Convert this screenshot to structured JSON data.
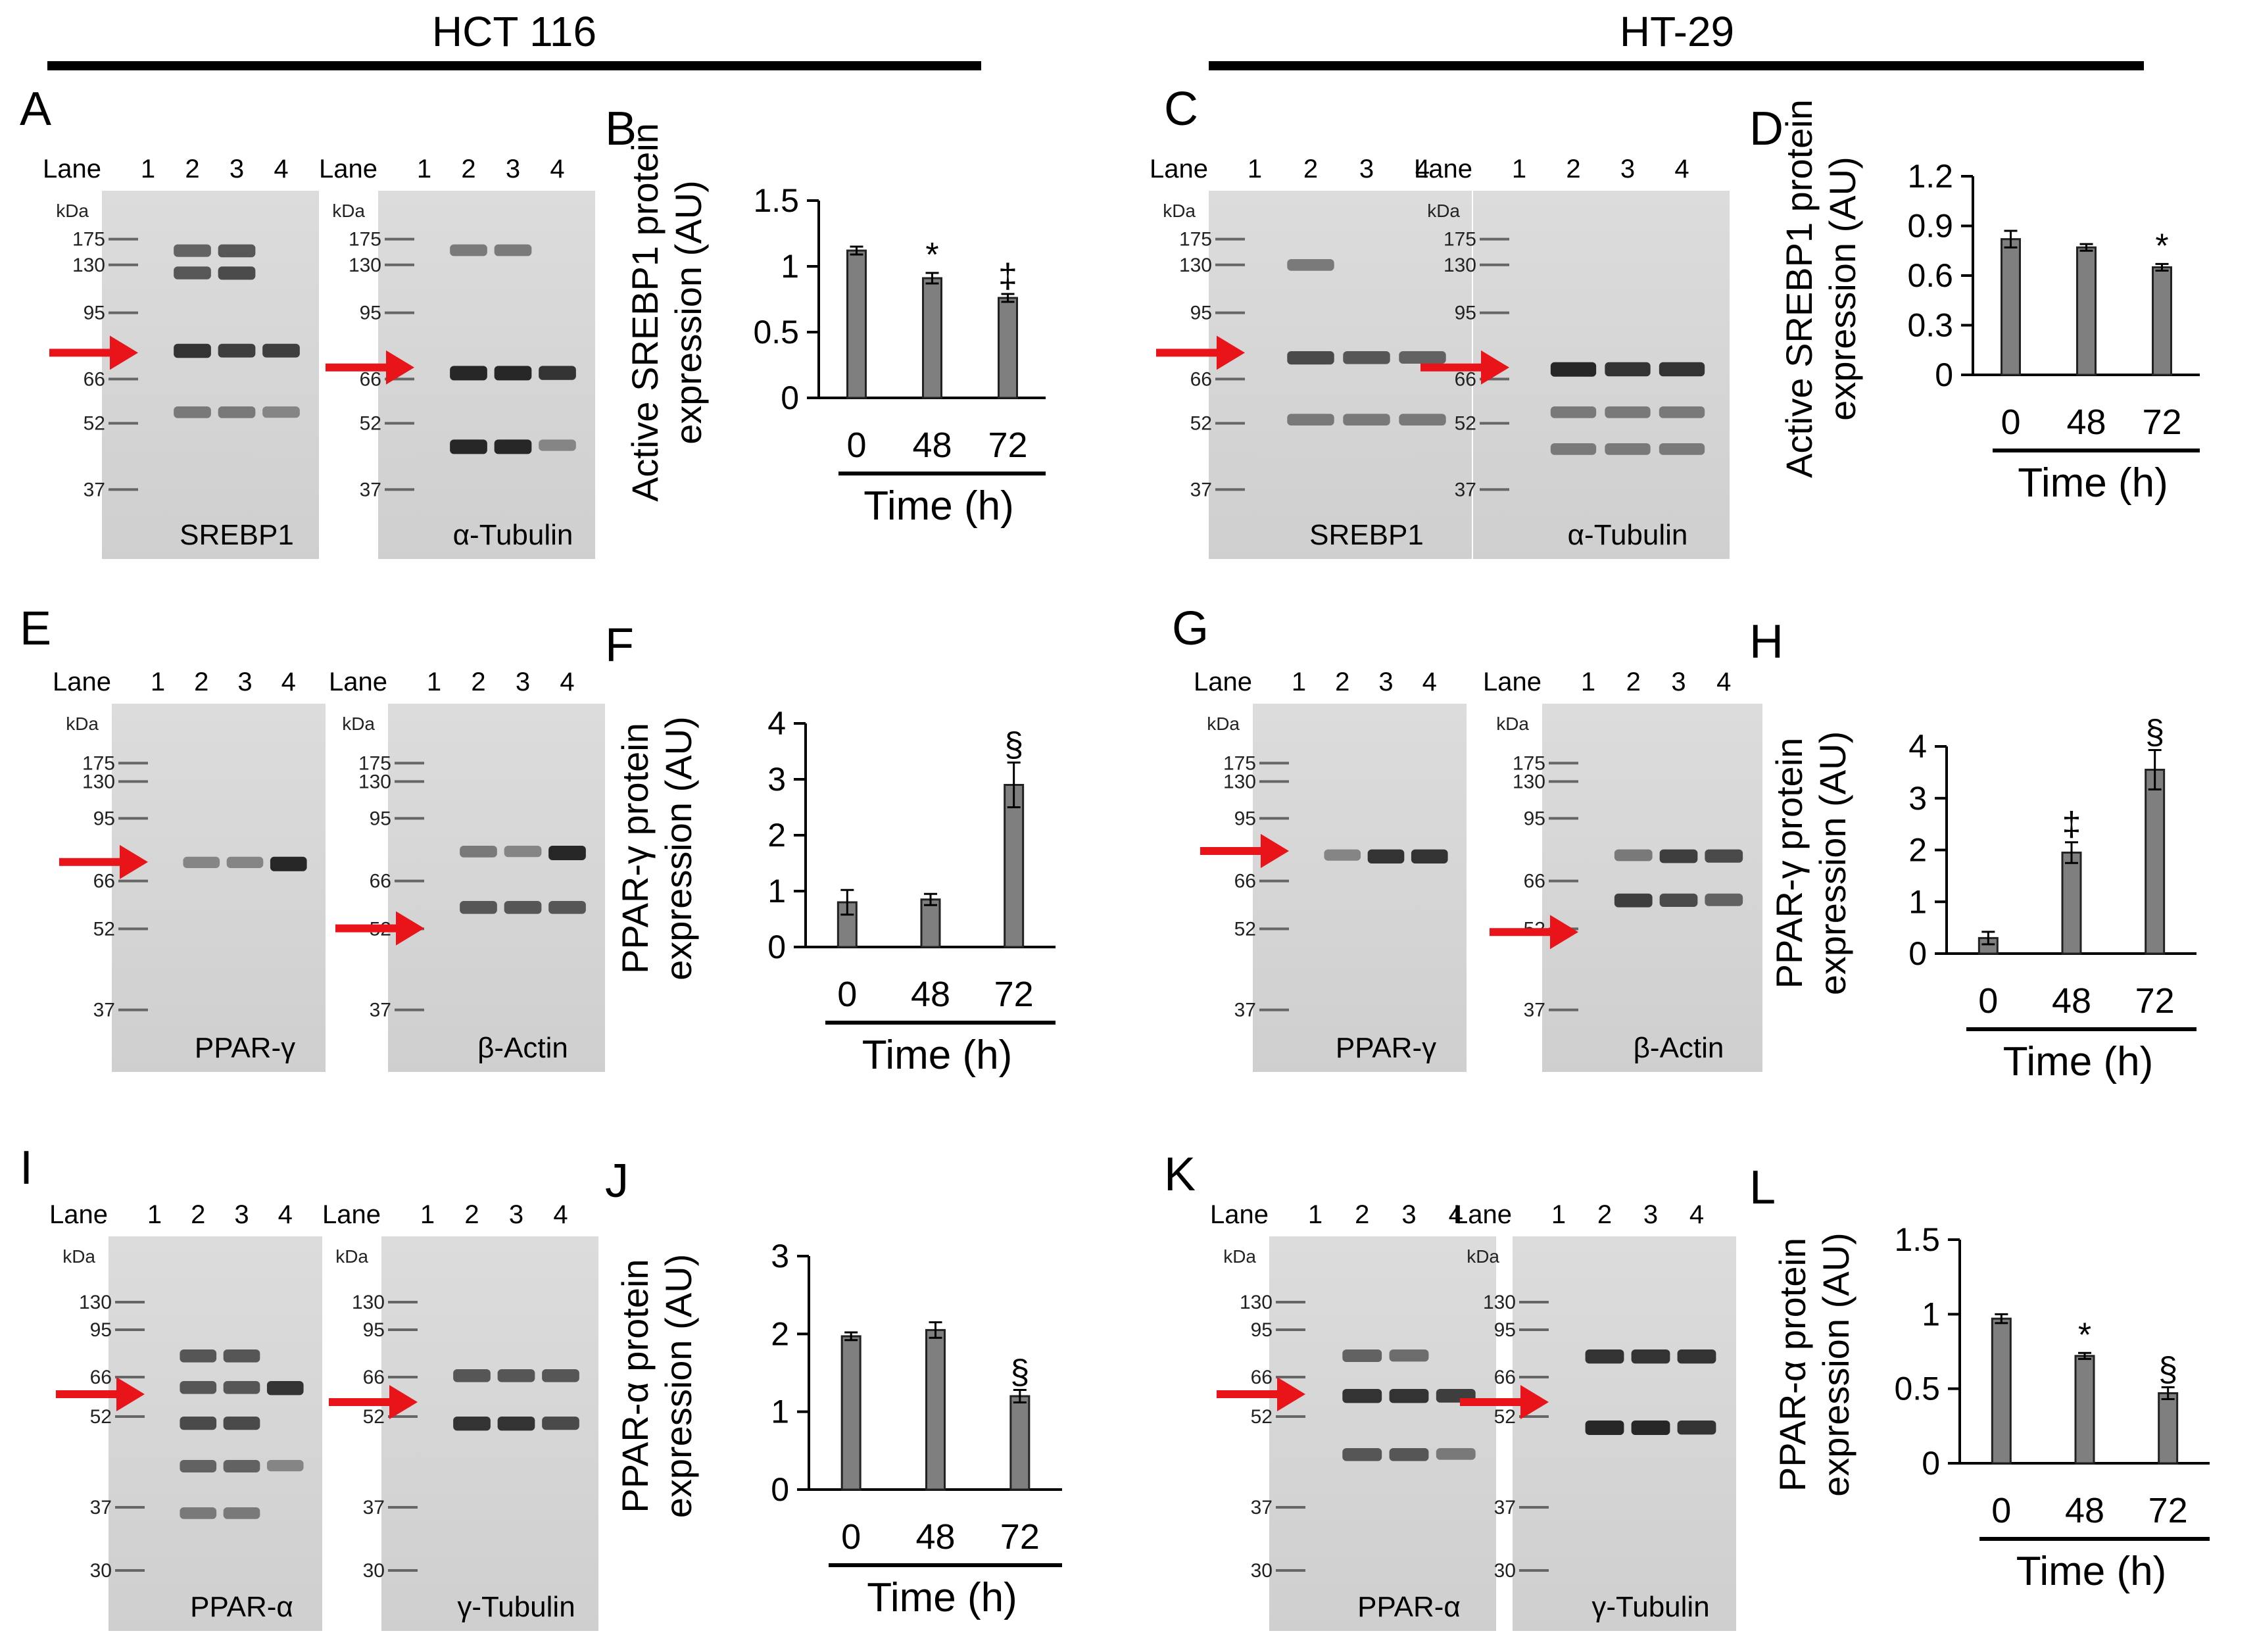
{
  "figure": {
    "groups": [
      {
        "label": "HCT 116"
      },
      {
        "label": "HT-29"
      }
    ],
    "lane_label": "Lane",
    "lane_numbers": [
      "1",
      "2",
      "3",
      "4"
    ],
    "kda_label": "kDa",
    "time_label": "Time (h)"
  },
  "blots": [
    {
      "panel": "A",
      "protein": "SREBP1",
      "markers": [
        "175",
        "130",
        "95",
        "66",
        "52",
        "37"
      ]
    },
    {
      "panel": "A",
      "protein": "α-Tubulin",
      "markers": [
        "175",
        "130",
        "95",
        "66",
        "52",
        "37"
      ]
    },
    {
      "panel": "C",
      "protein": "SREBP1",
      "markers": [
        "175",
        "130",
        "95",
        "66",
        "52",
        "37"
      ]
    },
    {
      "panel": "C",
      "protein": "α-Tubulin",
      "markers": [
        "175",
        "130",
        "95",
        "66",
        "52",
        "37"
      ]
    },
    {
      "panel": "E",
      "protein": "PPAR-γ",
      "markers": [
        "175",
        "130",
        "95",
        "66",
        "52",
        "37"
      ]
    },
    {
      "panel": "E",
      "protein": "β-Actin",
      "markers": [
        "175",
        "130",
        "95",
        "66",
        "52",
        "37"
      ]
    },
    {
      "panel": "G",
      "protein": "PPAR-γ",
      "markers": [
        "175",
        "130",
        "95",
        "66",
        "52",
        "37"
      ]
    },
    {
      "panel": "G",
      "protein": "β-Actin",
      "markers": [
        "175",
        "130",
        "95",
        "66",
        "52",
        "37"
      ]
    },
    {
      "panel": "I",
      "protein": "PPAR-α",
      "markers": [
        "130",
        "95",
        "66",
        "52",
        "37",
        "30"
      ]
    },
    {
      "panel": "I",
      "protein": "γ-Tubulin",
      "markers": [
        "130",
        "95",
        "66",
        "52",
        "37",
        "30"
      ]
    },
    {
      "panel": "K",
      "protein": "PPAR-α",
      "markers": [
        "130",
        "95",
        "66",
        "52",
        "37",
        "30"
      ]
    },
    {
      "panel": "K",
      "protein": "γ-Tubulin",
      "markers": [
        "130",
        "95",
        "66",
        "52",
        "37",
        "30"
      ]
    }
  ],
  "chart_data": [
    {
      "panel": "B",
      "type": "bar",
      "cell_line": "HCT 116",
      "ylabel": "Active SREBP1 protein expression (AU)",
      "xlabel": "Time (h)",
      "categories": [
        "0",
        "48",
        "72"
      ],
      "values": [
        1.12,
        0.91,
        0.76
      ],
      "errors": [
        0.03,
        0.04,
        0.03
      ],
      "significance": [
        "",
        "*",
        "‡"
      ],
      "ylim": [
        0,
        1.5
      ],
      "yticks": [
        "0",
        "0.5",
        "1",
        "1.5"
      ]
    },
    {
      "panel": "D",
      "type": "bar",
      "cell_line": "HT-29",
      "ylabel": "Active SREBP1 protein expression (AU)",
      "xlabel": "Time (h)",
      "categories": [
        "0",
        "48",
        "72"
      ],
      "values": [
        0.82,
        0.77,
        0.65
      ],
      "errors": [
        0.05,
        0.02,
        0.02
      ],
      "significance": [
        "",
        "",
        "*"
      ],
      "ylim": [
        0,
        1.2
      ],
      "yticks": [
        "0",
        "0.3",
        "0.6",
        "0.9",
        "1.2"
      ]
    },
    {
      "panel": "F",
      "type": "bar",
      "cell_line": "HCT 116",
      "ylabel": "PPAR-γ protein expression (AU)",
      "xlabel": "Time (h)",
      "categories": [
        "0",
        "48",
        "72"
      ],
      "values": [
        0.8,
        0.85,
        2.9
      ],
      "errors": [
        0.22,
        0.1,
        0.4
      ],
      "significance": [
        "",
        "",
        "§"
      ],
      "ylim": [
        0,
        4
      ],
      "yticks": [
        "0",
        "1",
        "2",
        "3",
        "4"
      ]
    },
    {
      "panel": "H",
      "type": "bar",
      "cell_line": "HT-29",
      "ylabel": "PPAR-γ protein expression (AU)",
      "xlabel": "Time (h)",
      "categories": [
        "0",
        "48",
        "72"
      ],
      "values": [
        0.3,
        1.95,
        3.55
      ],
      "errors": [
        0.12,
        0.2,
        0.38
      ],
      "significance": [
        "",
        "‡",
        "§"
      ],
      "ylim": [
        0,
        4
      ],
      "yticks": [
        "0",
        "1",
        "2",
        "3",
        "4"
      ]
    },
    {
      "panel": "J",
      "type": "bar",
      "cell_line": "HCT 116",
      "ylabel": "PPAR-α protein expression (AU)",
      "xlabel": "Time (h)",
      "categories": [
        "0",
        "48",
        "72"
      ],
      "values": [
        1.97,
        2.05,
        1.2
      ],
      "errors": [
        0.05,
        0.1,
        0.08
      ],
      "significance": [
        "",
        "",
        "§"
      ],
      "ylim": [
        0,
        3
      ],
      "yticks": [
        "0",
        "1",
        "2",
        "3"
      ]
    },
    {
      "panel": "L",
      "type": "bar",
      "cell_line": "HT-29",
      "ylabel": "PPAR-α protein expression (AU)",
      "xlabel": "Time (h)",
      "categories": [
        "0",
        "48",
        "72"
      ],
      "values": [
        0.97,
        0.72,
        0.47
      ],
      "errors": [
        0.03,
        0.02,
        0.04
      ],
      "significance": [
        "",
        "*",
        "§"
      ],
      "ylim": [
        0,
        1.5
      ],
      "yticks": [
        "0",
        "0.5",
        "1",
        "1.5"
      ]
    }
  ]
}
